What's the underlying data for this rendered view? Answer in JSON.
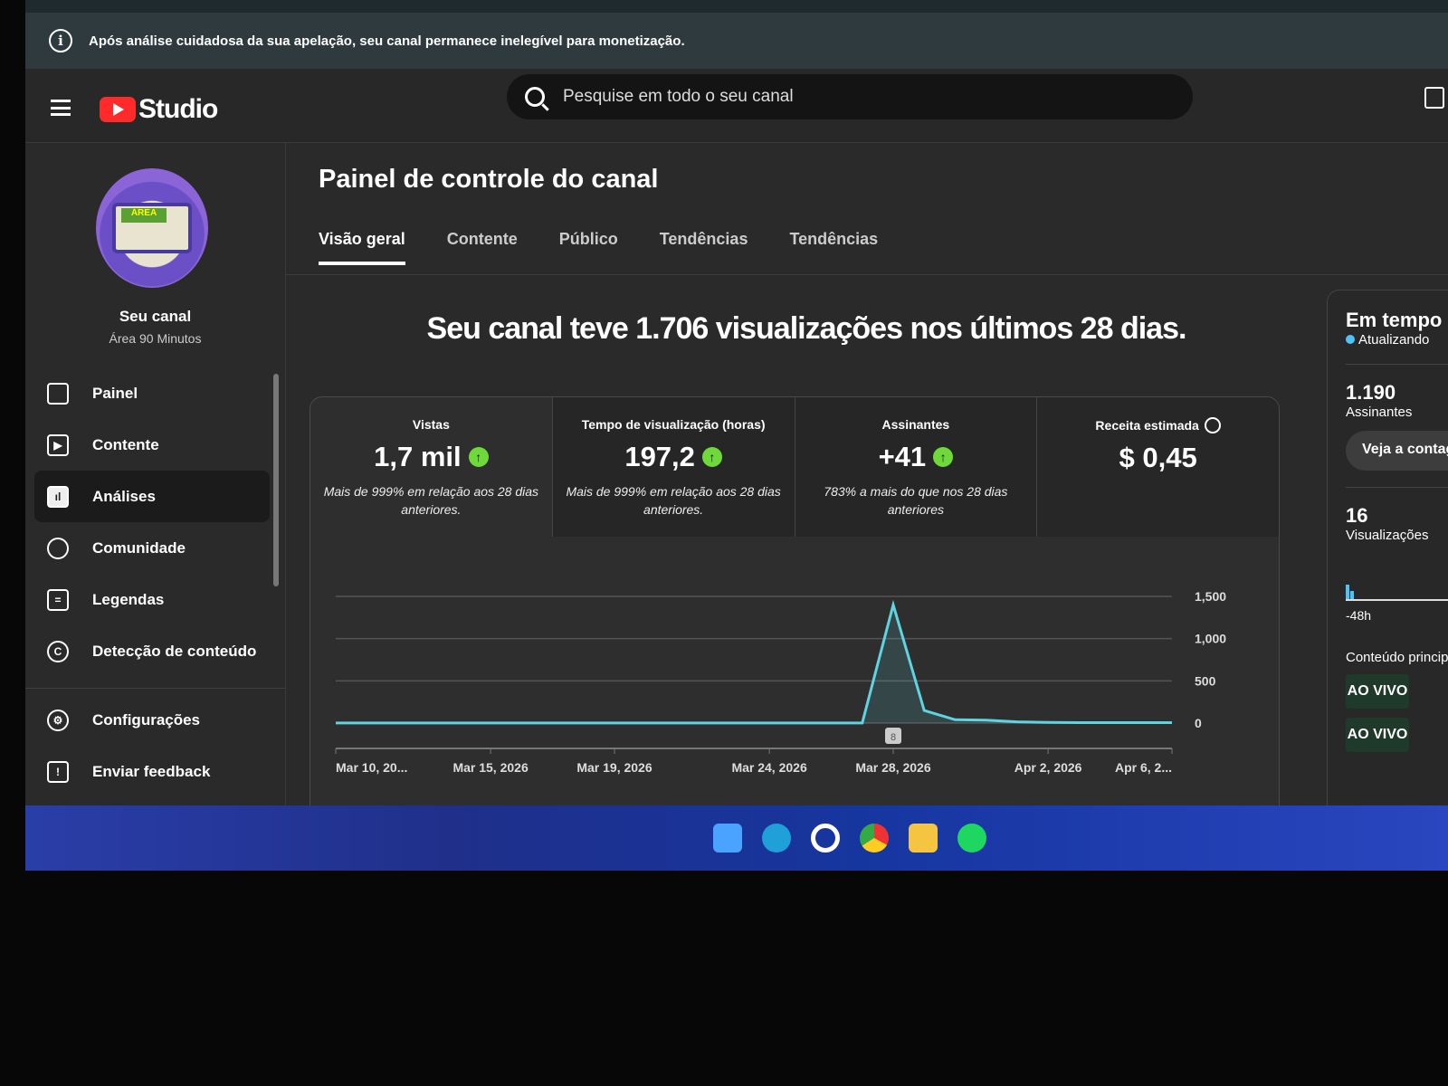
{
  "notice": {
    "text": "Após análise cuidadosa da sua apelação, seu canal permanece inelegível para monetização.",
    "icon": "info-icon"
  },
  "header": {
    "logo_text": "Studio",
    "search_placeholder": "Pesquise em todo o seu canal"
  },
  "sidebar": {
    "channel_label": "Seu canal",
    "channel_name": "Área 90 Minutos",
    "avatar_text": "ÁREA 90 MINUTOS",
    "items": [
      {
        "label": "Painel",
        "icon": "dashboard-icon"
      },
      {
        "label": "Contente",
        "icon": "content-icon"
      },
      {
        "label": "Análises",
        "icon": "analytics-icon",
        "active": true
      },
      {
        "label": "Comunidade",
        "icon": "community-icon"
      },
      {
        "label": "Legendas",
        "icon": "subtitles-icon"
      },
      {
        "label": "Detecção de conteúdo",
        "icon": "copyright-icon"
      }
    ],
    "bottom_items": [
      {
        "label": "Configurações",
        "icon": "gear-icon"
      },
      {
        "label": "Enviar feedback",
        "icon": "feedback-icon"
      }
    ]
  },
  "main": {
    "title": "Painel de controle do canal",
    "tabs": [
      {
        "label": "Visão geral",
        "active": true
      },
      {
        "label": "Contente"
      },
      {
        "label": "Público"
      },
      {
        "label": "Tendências"
      },
      {
        "label": "Tendências"
      }
    ],
    "headline": "Seu canal teve 1.706 visualizações nos últimos 28 dias.",
    "metrics": [
      {
        "label": "Vistas",
        "value": "1,7 mil",
        "trend": "up",
        "note": "Mais de 999% em relação aos 28 dias anteriores."
      },
      {
        "label": "Tempo de visualização (horas)",
        "value": "197,2",
        "trend": "up",
        "note": "Mais de 999% em relação aos 28 dias anteriores."
      },
      {
        "label": "Assinantes",
        "value": "+41",
        "trend": "up",
        "note": "783% a mais do que nos 28 dias anteriores"
      },
      {
        "label": "Receita estimada",
        "value": "$ 0,45",
        "note": ""
      }
    ]
  },
  "chart_data": {
    "type": "area",
    "x": [
      "Mar 10",
      "Mar 11",
      "Mar 12",
      "Mar 13",
      "Mar 14",
      "Mar 15",
      "Mar 16",
      "Mar 17",
      "Mar 18",
      "Mar 19",
      "Mar 20",
      "Mar 21",
      "Mar 22",
      "Mar 23",
      "Mar 24",
      "Mar 25",
      "Mar 26",
      "Mar 27",
      "Mar 28",
      "Mar 29",
      "Mar 30",
      "Mar 31",
      "Apr 1",
      "Apr 2",
      "Apr 3",
      "Apr 4",
      "Apr 5",
      "Apr 6"
    ],
    "values": [
      2,
      2,
      2,
      2,
      2,
      2,
      2,
      2,
      2,
      2,
      2,
      2,
      2,
      2,
      2,
      2,
      2,
      2,
      1400,
      150,
      40,
      35,
      15,
      8,
      6,
      6,
      5,
      5
    ],
    "x_tick_labels": [
      "Mar 10, 20...",
      "Mar 15, 2026",
      "Mar 19, 2026",
      "Mar 24, 2026",
      "Mar 28, 2026",
      "Apr 2, 2026",
      "Apr 6, 2..."
    ],
    "x_tick_index": [
      0,
      5,
      9,
      14,
      18,
      23,
      27
    ],
    "y_ticks": [
      "0",
      "500",
      "1,000",
      "1,500"
    ],
    "ylim": [
      0,
      1500
    ],
    "grid": true,
    "marker_label": "8",
    "line_color": "#5fd3e0"
  },
  "realtime": {
    "title": "Em tempo real",
    "status": "Atualizando",
    "subscribers": "1.190",
    "subscribers_label": "Assinantes",
    "button": "Veja a contagem",
    "views": "16",
    "views_label": "Visualizações",
    "mini_axis": "-48h",
    "top_content": "Conteúdo principal",
    "thumbs": [
      "AO VIVO",
      "AO VIVO"
    ]
  }
}
